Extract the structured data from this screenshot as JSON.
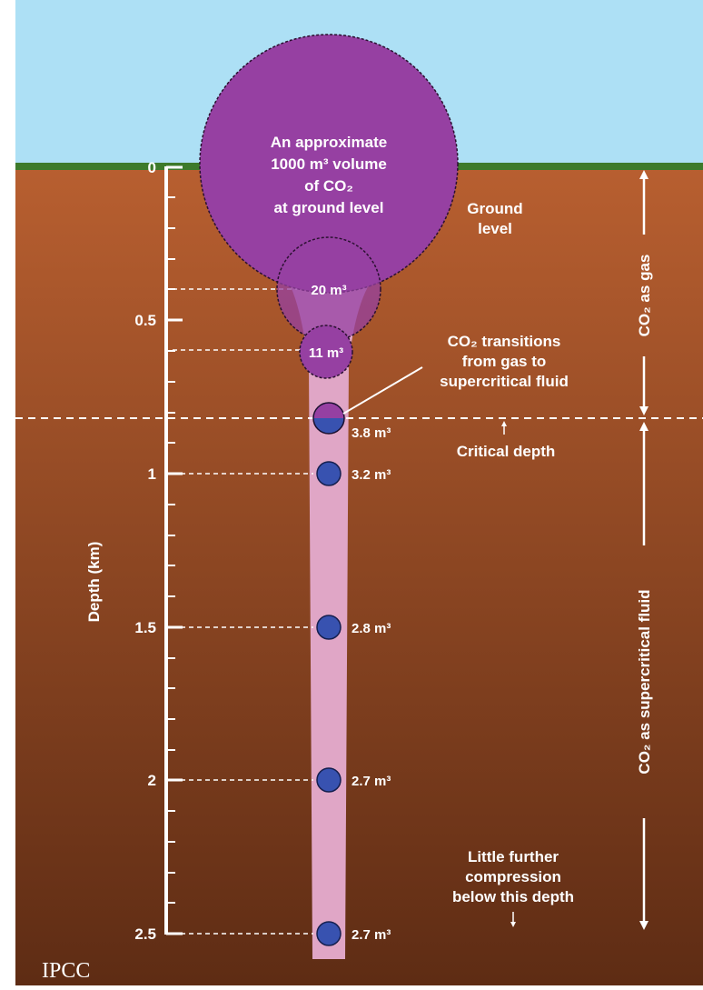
{
  "diagram": {
    "colors": {
      "sky": "#ade0f5",
      "grass": "#3d7a2b",
      "soil_top": "#b85f30",
      "soil_bottom": "#5e2c14",
      "gas_bubble": "#9640a2",
      "plume": "#e0a6c6",
      "supercritical_bubble": "#3852b0",
      "text": "#ffffff"
    },
    "axis": {
      "title": "Depth (km)",
      "ticks": [
        "0",
        "0.5",
        "1",
        "1.5",
        "2",
        "2.5"
      ]
    },
    "surface_bubble": {
      "lines": [
        "An approximate",
        "1000 m³ volume",
        "of CO₂",
        "at ground level"
      ]
    },
    "volumes": [
      {
        "depth_km": 0.4,
        "label": "20 m³",
        "phase": "gas"
      },
      {
        "depth_km": 0.6,
        "label": "11 m³",
        "phase": "gas"
      },
      {
        "depth_km": 0.82,
        "label": "3.8 m³",
        "phase": "transition"
      },
      {
        "depth_km": 1.0,
        "label": "3.2 m³",
        "phase": "supercritical"
      },
      {
        "depth_km": 1.5,
        "label": "2.8 m³",
        "phase": "supercritical"
      },
      {
        "depth_km": 2.0,
        "label": "2.7 m³",
        "phase": "supercritical"
      },
      {
        "depth_km": 2.5,
        "label": "2.7 m³",
        "phase": "supercritical"
      }
    ],
    "annotations": {
      "ground_level": [
        "Ground",
        "level"
      ],
      "transition": [
        "CO₂ transitions",
        "from gas to",
        "supercritical fluid"
      ],
      "critical_depth": "Critical depth",
      "little_compression": [
        "Little further",
        "compression",
        "below this depth"
      ]
    },
    "phases": {
      "gas": "CO₂ as gas",
      "supercritical": "CO₂ as supercritical fluid"
    },
    "credit": "IPCC"
  }
}
